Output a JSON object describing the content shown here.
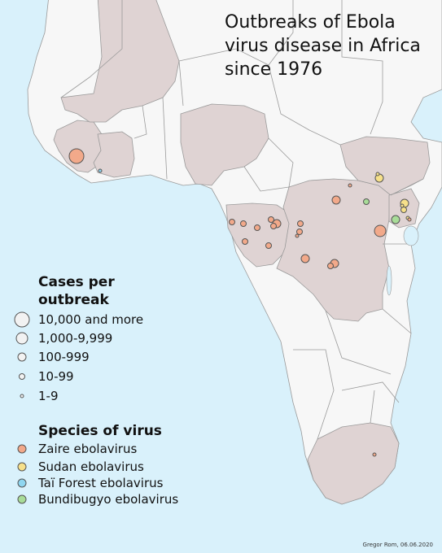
{
  "title_lines": [
    "Outbreaks of Ebola",
    "virus disease in Africa",
    "since 1976"
  ],
  "legend": {
    "cases_heading": [
      "Cases per",
      "outbreak"
    ],
    "sizes": [
      {
        "label": "10,000 and more",
        "r": 9
      },
      {
        "label": "1,000-9,999",
        "r": 7
      },
      {
        "label": "100-999",
        "r": 5
      },
      {
        "label": "10-99",
        "r": 3.5
      },
      {
        "label": "1-9",
        "r": 2
      }
    ],
    "species_heading": "Species of virus",
    "species": [
      {
        "label": "Zaire ebolavirus",
        "color": "#f2a98a"
      },
      {
        "label": "Sudan ebolavirus",
        "color": "#f6e08a"
      },
      {
        "label": "Taï Forest ebolavirus",
        "color": "#8fd6f0"
      },
      {
        "label": "Bundibugyo ebolavirus",
        "color": "#a8dc98"
      }
    ]
  },
  "credit": "Gregor Rom, 06.06.2020"
}
